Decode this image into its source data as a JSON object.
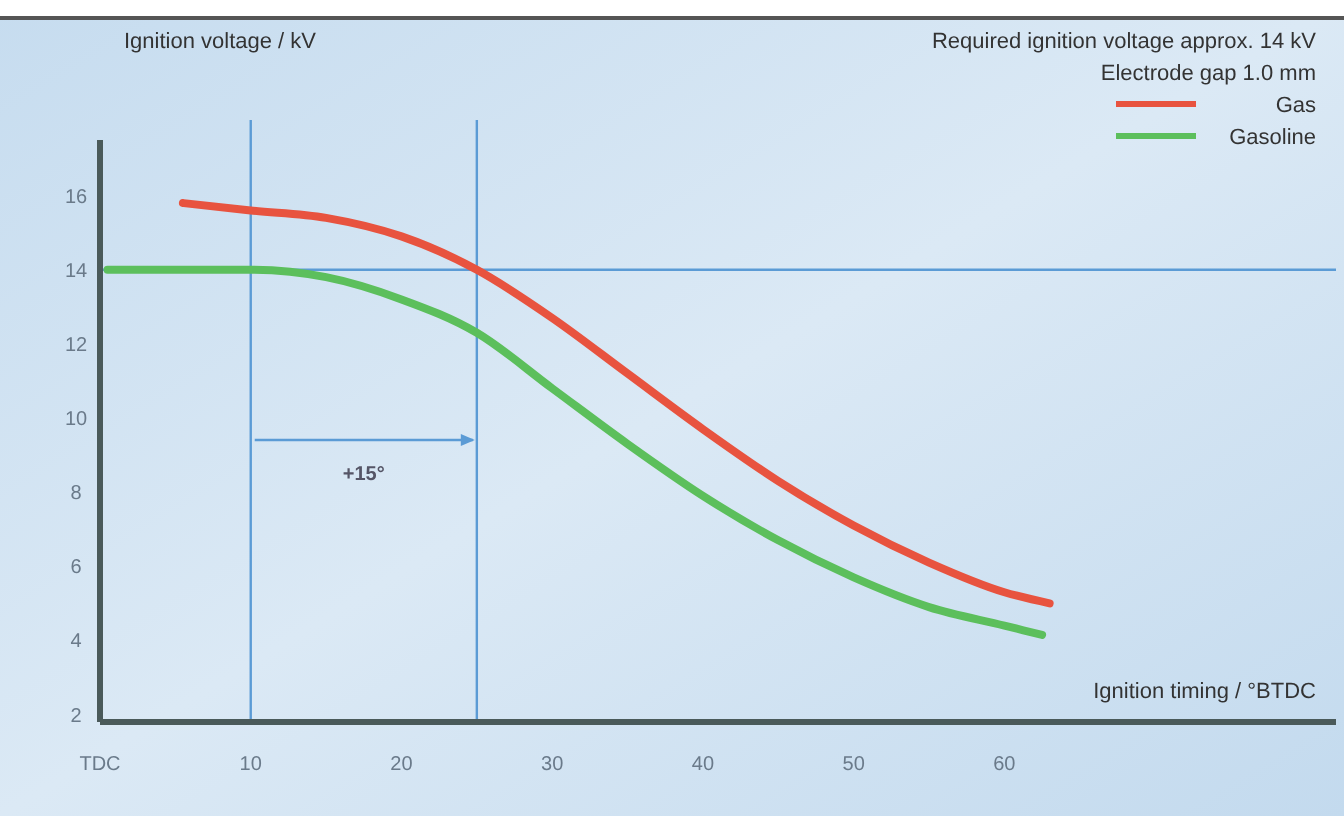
{
  "chart_data": {
    "type": "line",
    "ylabel": "Ignition voltage / kV",
    "xlabel": "Ignition timing / °BTDC",
    "xlim": [
      0,
      82
    ],
    "ylim": [
      1.8,
      17.5
    ],
    "xticks": [
      {
        "value": 0,
        "label": "TDC"
      },
      10,
      20,
      30,
      40,
      50,
      60
    ],
    "yticks": [
      2,
      4,
      6,
      8,
      10,
      12,
      14,
      16
    ],
    "grid": false,
    "legend": "top right",
    "line_style": "solid",
    "marker": "none",
    "series": [
      {
        "name": "Gas",
        "color": "#e8533f",
        "x": [
          5.5,
          10,
          15,
          20,
          25,
          30,
          35,
          40,
          45,
          50,
          55,
          60,
          63
        ],
        "values": [
          15.8,
          15.6,
          15.4,
          14.9,
          14.0,
          12.7,
          11.2,
          9.7,
          8.3,
          7.1,
          6.1,
          5.3,
          5.0
        ]
      },
      {
        "name": "Gasoline",
        "color": "#5cbf5c",
        "x": [
          0.5,
          5,
          10,
          15,
          20,
          25,
          30,
          35,
          40,
          45,
          50,
          55,
          60,
          62.5
        ],
        "values": [
          14.0,
          14.0,
          14.0,
          13.8,
          13.2,
          12.3,
          10.8,
          9.3,
          7.9,
          6.7,
          5.7,
          4.9,
          4.4,
          4.15
        ]
      }
    ],
    "ref_lines": [
      {
        "axis": "x",
        "value": 10,
        "color": "#5b9bd5"
      },
      {
        "axis": "x",
        "value": 25,
        "color": "#5b9bd5"
      },
      {
        "axis": "y",
        "value": 14,
        "color": "#5b9bd5"
      }
    ],
    "annotations": [
      "Required ignition voltage approx. 14 kV",
      "Electrode gap 1.0 mm",
      "+15°"
    ]
  }
}
